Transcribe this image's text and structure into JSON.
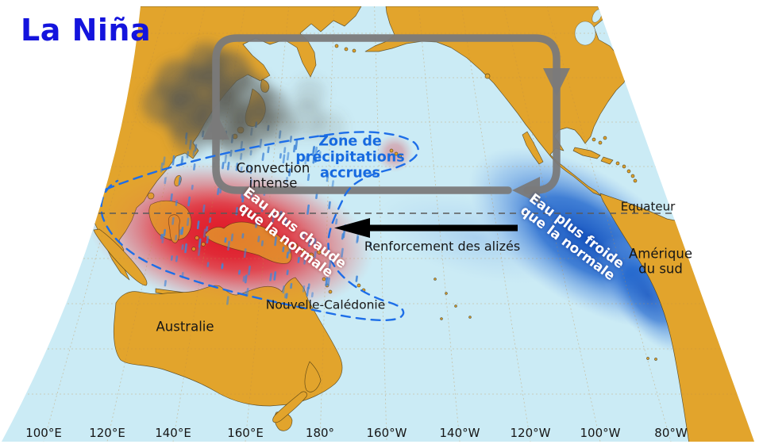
{
  "title": "La Niña",
  "map_labels": {
    "convection": "Convection\nintense",
    "precipitation_zone": "Zone de\nprécipitations\naccrues",
    "warm_water": "Eau plus chaude\nque la normale",
    "cold_water": "Eau plus froide\nque la normale",
    "trade_winds": "Renforcement des alizés",
    "equator": "Equateur",
    "south_america": "Amérique\ndu sud",
    "australia": "Australie",
    "new_caledonia": "Nouvelle-Calédonie"
  },
  "axis": {
    "longitude_ticks": [
      "100°E",
      "120°E",
      "140°E",
      "160°E",
      "180°",
      "160°W",
      "140°W",
      "120°W",
      "100°W",
      "80°W"
    ]
  },
  "icons": {
    "circulation_loop": "walker-circulation-loop-arrows",
    "trade_wind": "westward-trade-wind-arrow",
    "convection_cloud": "convection-smoke-cloud",
    "rain": "rain-dashes",
    "precipitation_outline": "dashed-ellipse-outline",
    "equator_line": "dashed-equator-line"
  },
  "colors": {
    "land": "#E2A42C",
    "ocean": "#CBEBF5",
    "warm_anomaly": "#E02830",
    "cold_anomaly": "#1E5FC4",
    "circulation_arrow": "#7A7A7A",
    "trade_wind_arrow": "#000000",
    "precipitation_outline": "#1D6EE8",
    "title_blue": "#1414DD"
  }
}
